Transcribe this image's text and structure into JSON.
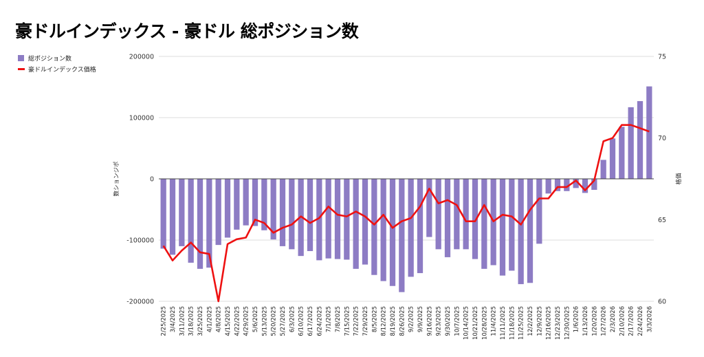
{
  "chart_data": {
    "type": "bar",
    "title": "豪ドルインデックス - 豪ドル 総ポジション数",
    "ylabel": "数ションジポ",
    "y2label": "格価",
    "ylim": [
      -200000,
      200000
    ],
    "y2lim": [
      60,
      75
    ],
    "yticks": [
      "200000",
      "100000",
      "0",
      "-100000",
      "-200000"
    ],
    "y2ticks": [
      "75",
      "70",
      "65",
      "60"
    ],
    "grid": true,
    "legend_position": "top-left",
    "categories": [
      "2/25/2025",
      "3/4/2025",
      "3/11/2025",
      "3/18/2025",
      "3/25/2025",
      "4/1/2025",
      "4/8/2025",
      "4/15/2025",
      "4/22/2025",
      "4/29/2025",
      "5/6/2025",
      "5/13/2025",
      "5/20/2025",
      "5/27/2025",
      "6/3/2025",
      "6/10/2025",
      "6/17/2025",
      "6/24/2025",
      "7/1/2025",
      "7/8/2025",
      "7/15/2025",
      "7/22/2025",
      "7/29/2025",
      "8/5/2025",
      "8/12/2025",
      "8/19/2025",
      "8/26/2025",
      "9/2/2025",
      "9/9/2025",
      "9/16/2025",
      "9/23/2025",
      "9/30/2025",
      "10/7/2025",
      "10/14/2025",
      "10/21/2025",
      "10/28/2025",
      "11/4/2025",
      "11/11/2025",
      "11/18/2025",
      "11/25/2025",
      "12/2/2025",
      "12/9/2025",
      "12/16/2025",
      "12/23/2025",
      "12/30/2025",
      "1/6/2026",
      "1/13/2026",
      "1/20/2026",
      "1/27/2026",
      "2/3/2026",
      "2/10/2026",
      "2/17/2026",
      "2/24/2026",
      "3/3/2026"
    ],
    "series": [
      {
        "name": "総ポジション数",
        "kind": "bar",
        "axis": "left",
        "color": "#8d7cc4",
        "values": [
          -114000,
          -124000,
          -110000,
          -137000,
          -147000,
          -145000,
          -108000,
          -96000,
          -83000,
          -76000,
          -77000,
          -84000,
          -99000,
          -110000,
          -115000,
          -126000,
          -118000,
          -133000,
          -130000,
          -131000,
          -132000,
          -147000,
          -140000,
          -157000,
          -167000,
          -175000,
          -185000,
          -160000,
          -154000,
          -95000,
          -115000,
          -128000,
          -115000,
          -115000,
          -131000,
          -147000,
          -141000,
          -158000,
          -150000,
          -172000,
          -170000,
          -106000,
          -24000,
          -20000,
          -20000,
          -15000,
          -23000,
          -18000,
          31000,
          66000,
          85000,
          117000,
          127000,
          151000
        ]
      },
      {
        "name": "豪ドルインデックス価格",
        "kind": "line",
        "axis": "right",
        "color": "#ee1111",
        "values": [
          63.4,
          62.5,
          63.1,
          63.6,
          63.0,
          62.9,
          60.0,
          63.5,
          63.8,
          63.9,
          65.0,
          64.8,
          64.2,
          64.5,
          64.7,
          65.2,
          64.8,
          65.1,
          65.8,
          65.3,
          65.2,
          65.5,
          65.2,
          64.7,
          65.3,
          64.5,
          64.9,
          65.1,
          65.8,
          66.9,
          66.0,
          66.2,
          65.9,
          64.9,
          64.9,
          65.9,
          64.9,
          65.3,
          65.2,
          64.7,
          65.6,
          66.3,
          66.3,
          67.0,
          67.0,
          67.4,
          66.8,
          67.4,
          69.8,
          70.0,
          70.8,
          70.8,
          70.6,
          70.4
        ]
      }
    ]
  }
}
